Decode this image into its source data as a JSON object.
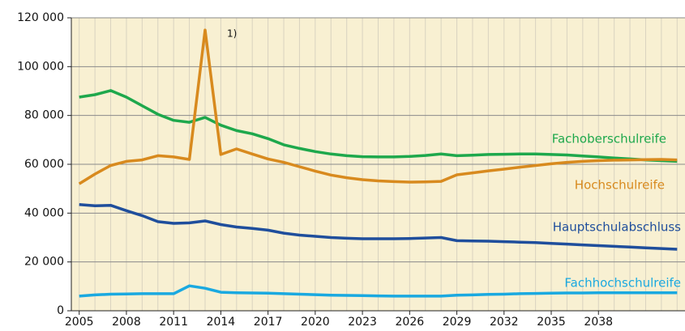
{
  "chart_data": {
    "type": "line",
    "annotation": "1)",
    "x": [
      2005,
      2006,
      2007,
      2008,
      2009,
      2010,
      2011,
      2012,
      2013,
      2014,
      2015,
      2016,
      2017,
      2018,
      2019,
      2020,
      2021,
      2022,
      2023,
      2024,
      2025,
      2026,
      2027,
      2028,
      2029,
      2030,
      2031,
      2032,
      2033,
      2034,
      2035,
      2036,
      2037,
      2038,
      2039,
      2040,
      2041,
      2042,
      2043
    ],
    "series": [
      {
        "name": "Fachoberschulreife",
        "color": "#1ea84c",
        "values": [
          87500,
          88500,
          90200,
          87500,
          84000,
          80500,
          78000,
          77200,
          79200,
          76000,
          73800,
          72500,
          70500,
          68000,
          66500,
          65200,
          64200,
          63500,
          63100,
          63000,
          63000,
          63200,
          63600,
          64200,
          63500,
          63700,
          64000,
          64100,
          64200,
          64200,
          64000,
          63800,
          63400,
          63000,
          62600,
          62200,
          61800,
          61500,
          61200
        ]
      },
      {
        "name": "Hochschulreife",
        "color": "#d88a1e",
        "values": [
          52000,
          56000,
          59500,
          61200,
          61800,
          63500,
          63000,
          62000,
          115000,
          64000,
          66300,
          64200,
          62200,
          60800,
          59000,
          57200,
          55600,
          54500,
          53700,
          53200,
          52900,
          52700,
          52800,
          53000,
          55700,
          56500,
          57300,
          58000,
          58800,
          59500,
          60200,
          60800,
          61200,
          61500,
          61700,
          61800,
          61900,
          62000,
          61800
        ]
      },
      {
        "name": "Hauptschulabschluss",
        "color": "#1f4e9c",
        "values": [
          43500,
          43000,
          43200,
          41000,
          39000,
          36500,
          35800,
          36000,
          36800,
          35300,
          34300,
          33700,
          33000,
          31800,
          31000,
          30500,
          30000,
          29700,
          29500,
          29500,
          29500,
          29600,
          29800,
          30000,
          28700,
          28600,
          28500,
          28300,
          28100,
          27900,
          27600,
          27300,
          27000,
          26700,
          26400,
          26100,
          25800,
          25500,
          25200
        ]
      },
      {
        "name": "Fachhochschulreife",
        "color": "#1aa9e0",
        "values": [
          6000,
          6500,
          6800,
          6900,
          7000,
          7000,
          7000,
          10200,
          9200,
          7600,
          7400,
          7300,
          7200,
          7000,
          6800,
          6600,
          6400,
          6300,
          6200,
          6100,
          6000,
          6000,
          6000,
          6000,
          6400,
          6500,
          6700,
          6800,
          7000,
          7100,
          7200,
          7300,
          7300,
          7400,
          7400,
          7400,
          7400,
          7400,
          7400
        ]
      }
    ],
    "xlim": [
      2004.5,
      2043.5
    ],
    "xticks": [
      2005,
      2008,
      2011,
      2014,
      2017,
      2020,
      2023,
      2026,
      2029,
      2032,
      2035,
      2038
    ],
    "ylim": [
      0,
      120000
    ],
    "yticks": [
      {
        "value": 0,
        "label": "0"
      },
      {
        "value": 20000,
        "label": "20 000"
      },
      {
        "value": 40000,
        "label": "40 000"
      },
      {
        "value": 60000,
        "label": "60 000"
      },
      {
        "value": 80000,
        "label": "80 000"
      },
      {
        "value": 100000,
        "label": "100 000"
      },
      {
        "value": 120000,
        "label": "120 000"
      }
    ],
    "grid": true
  }
}
